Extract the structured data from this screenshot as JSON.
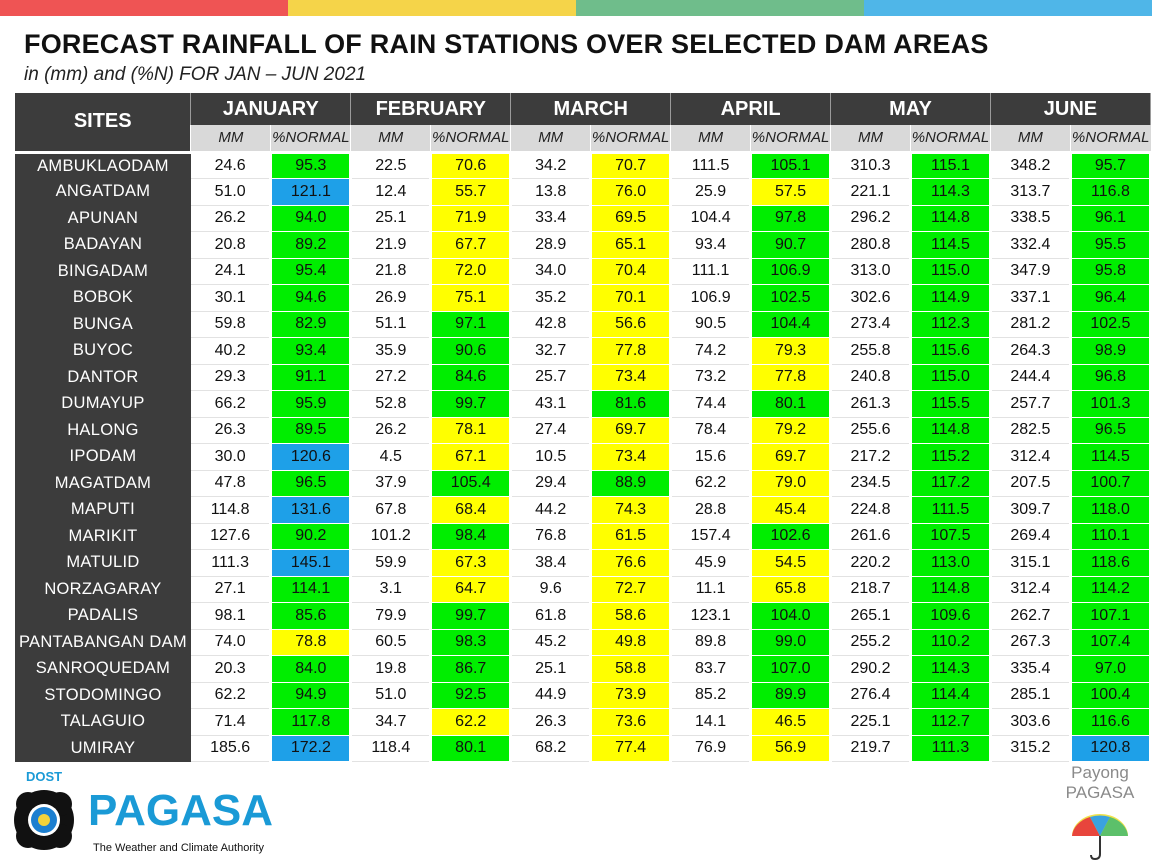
{
  "topbar_colors": [
    "#ef5454",
    "#f5d449",
    "#6fbd8b",
    "#4fb6e8"
  ],
  "header": {
    "title": "FORECAST RAINFALL OF RAIN STATIONS OVER SELECTED DAM AREAS",
    "subtitle": "in (mm) and (%N) FOR JAN – JUN 2021"
  },
  "table": {
    "sites_label": "SITES",
    "months": [
      "JANUARY",
      "FEBRUARY",
      "MARCH",
      "APRIL",
      "MAY",
      "JUNE"
    ],
    "subheaders": {
      "mm": "MM",
      "pn": "%NORMAL"
    },
    "category_colors": {
      "green": "#00ee00",
      "yellow": "#ffff00",
      "blue": "#1ea0e8",
      "white": "#ffffff"
    },
    "rows": [
      {
        "site": "AMBUKLAODAM",
        "values": [
          [
            "24.6",
            "95.3",
            "g"
          ],
          [
            "22.5",
            "70.6",
            "y"
          ],
          [
            "34.2",
            "70.7",
            "y"
          ],
          [
            "111.5",
            "105.1",
            "g"
          ],
          [
            "310.3",
            "115.1",
            "g"
          ],
          [
            "348.2",
            "95.7",
            "g"
          ]
        ]
      },
      {
        "site": "ANGATDAM",
        "values": [
          [
            "51.0",
            "121.1",
            "b"
          ],
          [
            "12.4",
            "55.7",
            "y"
          ],
          [
            "13.8",
            "76.0",
            "y"
          ],
          [
            "25.9",
            "57.5",
            "y"
          ],
          [
            "221.1",
            "114.3",
            "g"
          ],
          [
            "313.7",
            "116.8",
            "g"
          ]
        ]
      },
      {
        "site": "APUNAN",
        "values": [
          [
            "26.2",
            "94.0",
            "g"
          ],
          [
            "25.1",
            "71.9",
            "y"
          ],
          [
            "33.4",
            "69.5",
            "y"
          ],
          [
            "104.4",
            "97.8",
            "g"
          ],
          [
            "296.2",
            "114.8",
            "g"
          ],
          [
            "338.5",
            "96.1",
            "g"
          ]
        ]
      },
      {
        "site": "BADAYAN",
        "values": [
          [
            "20.8",
            "89.2",
            "g"
          ],
          [
            "21.9",
            "67.7",
            "y"
          ],
          [
            "28.9",
            "65.1",
            "y"
          ],
          [
            "93.4",
            "90.7",
            "g"
          ],
          [
            "280.8",
            "114.5",
            "g"
          ],
          [
            "332.4",
            "95.5",
            "g"
          ]
        ]
      },
      {
        "site": "BINGADAM",
        "values": [
          [
            "24.1",
            "95.4",
            "g"
          ],
          [
            "21.8",
            "72.0",
            "y"
          ],
          [
            "34.0",
            "70.4",
            "y"
          ],
          [
            "111.1",
            "106.9",
            "g"
          ],
          [
            "313.0",
            "115.0",
            "g"
          ],
          [
            "347.9",
            "95.8",
            "g"
          ]
        ]
      },
      {
        "site": "BOBOK",
        "values": [
          [
            "30.1",
            "94.6",
            "g"
          ],
          [
            "26.9",
            "75.1",
            "y"
          ],
          [
            "35.2",
            "70.1",
            "y"
          ],
          [
            "106.9",
            "102.5",
            "g"
          ],
          [
            "302.6",
            "114.9",
            "g"
          ],
          [
            "337.1",
            "96.4",
            "g"
          ]
        ]
      },
      {
        "site": "BUNGA",
        "values": [
          [
            "59.8",
            "82.9",
            "g"
          ],
          [
            "51.1",
            "97.1",
            "g"
          ],
          [
            "42.8",
            "56.6",
            "y"
          ],
          [
            "90.5",
            "104.4",
            "g"
          ],
          [
            "273.4",
            "112.3",
            "g"
          ],
          [
            "281.2",
            "102.5",
            "g"
          ]
        ]
      },
      {
        "site": "BUYOC",
        "values": [
          [
            "40.2",
            "93.4",
            "g"
          ],
          [
            "35.9",
            "90.6",
            "g"
          ],
          [
            "32.7",
            "77.8",
            "y"
          ],
          [
            "74.2",
            "79.3",
            "y"
          ],
          [
            "255.8",
            "115.6",
            "g"
          ],
          [
            "264.3",
            "98.9",
            "g"
          ]
        ]
      },
      {
        "site": "DANTOR",
        "values": [
          [
            "29.3",
            "91.1",
            "g"
          ],
          [
            "27.2",
            "84.6",
            "g"
          ],
          [
            "25.7",
            "73.4",
            "y"
          ],
          [
            "73.2",
            "77.8",
            "y"
          ],
          [
            "240.8",
            "115.0",
            "g"
          ],
          [
            "244.4",
            "96.8",
            "g"
          ]
        ]
      },
      {
        "site": "DUMAYUP",
        "values": [
          [
            "66.2",
            "95.9",
            "g"
          ],
          [
            "52.8",
            "99.7",
            "g"
          ],
          [
            "43.1",
            "81.6",
            "g"
          ],
          [
            "74.4",
            "80.1",
            "g"
          ],
          [
            "261.3",
            "115.5",
            "g"
          ],
          [
            "257.7",
            "101.3",
            "g"
          ]
        ]
      },
      {
        "site": "HALONG",
        "values": [
          [
            "26.3",
            "89.5",
            "g"
          ],
          [
            "26.2",
            "78.1",
            "y"
          ],
          [
            "27.4",
            "69.7",
            "y"
          ],
          [
            "78.4",
            "79.2",
            "y"
          ],
          [
            "255.6",
            "114.8",
            "g"
          ],
          [
            "282.5",
            "96.5",
            "g"
          ]
        ]
      },
      {
        "site": "IPODAM",
        "values": [
          [
            "30.0",
            "120.6",
            "b"
          ],
          [
            "4.5",
            "67.1",
            "y"
          ],
          [
            "10.5",
            "73.4",
            "y"
          ],
          [
            "15.6",
            "69.7",
            "y"
          ],
          [
            "217.2",
            "115.2",
            "g"
          ],
          [
            "312.4",
            "114.5",
            "g"
          ]
        ]
      },
      {
        "site": "MAGATDAM",
        "values": [
          [
            "47.8",
            "96.5",
            "g"
          ],
          [
            "37.9",
            "105.4",
            "g"
          ],
          [
            "29.4",
            "88.9",
            "g"
          ],
          [
            "62.2",
            "79.0",
            "y"
          ],
          [
            "234.5",
            "117.2",
            "g"
          ],
          [
            "207.5",
            "100.7",
            "g"
          ]
        ]
      },
      {
        "site": "MAPUTI",
        "values": [
          [
            "114.8",
            "131.6",
            "b"
          ],
          [
            "67.8",
            "68.4",
            "y"
          ],
          [
            "44.2",
            "74.3",
            "y"
          ],
          [
            "28.8",
            "45.4",
            "y"
          ],
          [
            "224.8",
            "111.5",
            "g"
          ],
          [
            "309.7",
            "118.0",
            "g"
          ]
        ]
      },
      {
        "site": "MARIKIT",
        "values": [
          [
            "127.6",
            "90.2",
            "g"
          ],
          [
            "101.2",
            "98.4",
            "g"
          ],
          [
            "76.8",
            "61.5",
            "y"
          ],
          [
            "157.4",
            "102.6",
            "g"
          ],
          [
            "261.6",
            "107.5",
            "g"
          ],
          [
            "269.4",
            "110.1",
            "g"
          ]
        ]
      },
      {
        "site": "MATULID",
        "values": [
          [
            "111.3",
            "145.1",
            "b"
          ],
          [
            "59.9",
            "67.3",
            "y"
          ],
          [
            "38.4",
            "76.6",
            "y"
          ],
          [
            "45.9",
            "54.5",
            "y"
          ],
          [
            "220.2",
            "113.0",
            "g"
          ],
          [
            "315.1",
            "118.6",
            "g"
          ]
        ]
      },
      {
        "site": "NORZAGARAY",
        "values": [
          [
            "27.1",
            "114.1",
            "g"
          ],
          [
            "3.1",
            "64.7",
            "y"
          ],
          [
            "9.6",
            "72.7",
            "y"
          ],
          [
            "11.1",
            "65.8",
            "y"
          ],
          [
            "218.7",
            "114.8",
            "g"
          ],
          [
            "312.4",
            "114.2",
            "g"
          ]
        ]
      },
      {
        "site": "PADALIS",
        "values": [
          [
            "98.1",
            "85.6",
            "g"
          ],
          [
            "79.9",
            "99.7",
            "g"
          ],
          [
            "61.8",
            "58.6",
            "y"
          ],
          [
            "123.1",
            "104.0",
            "g"
          ],
          [
            "265.1",
            "109.6",
            "g"
          ],
          [
            "262.7",
            "107.1",
            "g"
          ]
        ]
      },
      {
        "site": "PANTABANGAN DAM",
        "values": [
          [
            "74.0",
            "78.8",
            "y"
          ],
          [
            "60.5",
            "98.3",
            "g"
          ],
          [
            "45.2",
            "49.8",
            "y"
          ],
          [
            "89.8",
            "99.0",
            "g"
          ],
          [
            "255.2",
            "110.2",
            "g"
          ],
          [
            "267.3",
            "107.4",
            "g"
          ]
        ]
      },
      {
        "site": "SANROQUEDAM",
        "values": [
          [
            "20.3",
            "84.0",
            "g"
          ],
          [
            "19.8",
            "86.7",
            "g"
          ],
          [
            "25.1",
            "58.8",
            "y"
          ],
          [
            "83.7",
            "107.0",
            "g"
          ],
          [
            "290.2",
            "114.3",
            "g"
          ],
          [
            "335.4",
            "97.0",
            "g"
          ]
        ]
      },
      {
        "site": "STODOMINGO",
        "values": [
          [
            "62.2",
            "94.9",
            "g"
          ],
          [
            "51.0",
            "92.5",
            "g"
          ],
          [
            "44.9",
            "73.9",
            "y"
          ],
          [
            "85.2",
            "89.9",
            "g"
          ],
          [
            "276.4",
            "114.4",
            "g"
          ],
          [
            "285.1",
            "100.4",
            "g"
          ]
        ]
      },
      {
        "site": "TALAGUIO",
        "values": [
          [
            "71.4",
            "117.8",
            "g"
          ],
          [
            "34.7",
            "62.2",
            "y"
          ],
          [
            "26.3",
            "73.6",
            "y"
          ],
          [
            "14.1",
            "46.5",
            "y"
          ],
          [
            "225.1",
            "112.7",
            "g"
          ],
          [
            "303.6",
            "116.6",
            "g"
          ]
        ]
      },
      {
        "site": "UMIRAY",
        "values": [
          [
            "185.6",
            "172.2",
            "b"
          ],
          [
            "118.4",
            "80.1",
            "g"
          ],
          [
            "68.2",
            "77.4",
            "y"
          ],
          [
            "76.9",
            "56.9",
            "y"
          ],
          [
            "219.7",
            "111.3",
            "g"
          ],
          [
            "315.2",
            "120.8",
            "b"
          ]
        ]
      }
    ]
  },
  "footer": {
    "dost_label": "DOST",
    "pagasa_label": "PAGASA",
    "pagasa_tagline": "The Weather and Climate Authority",
    "payong_line1": "Payong",
    "payong_line2": "PAGASA"
  }
}
